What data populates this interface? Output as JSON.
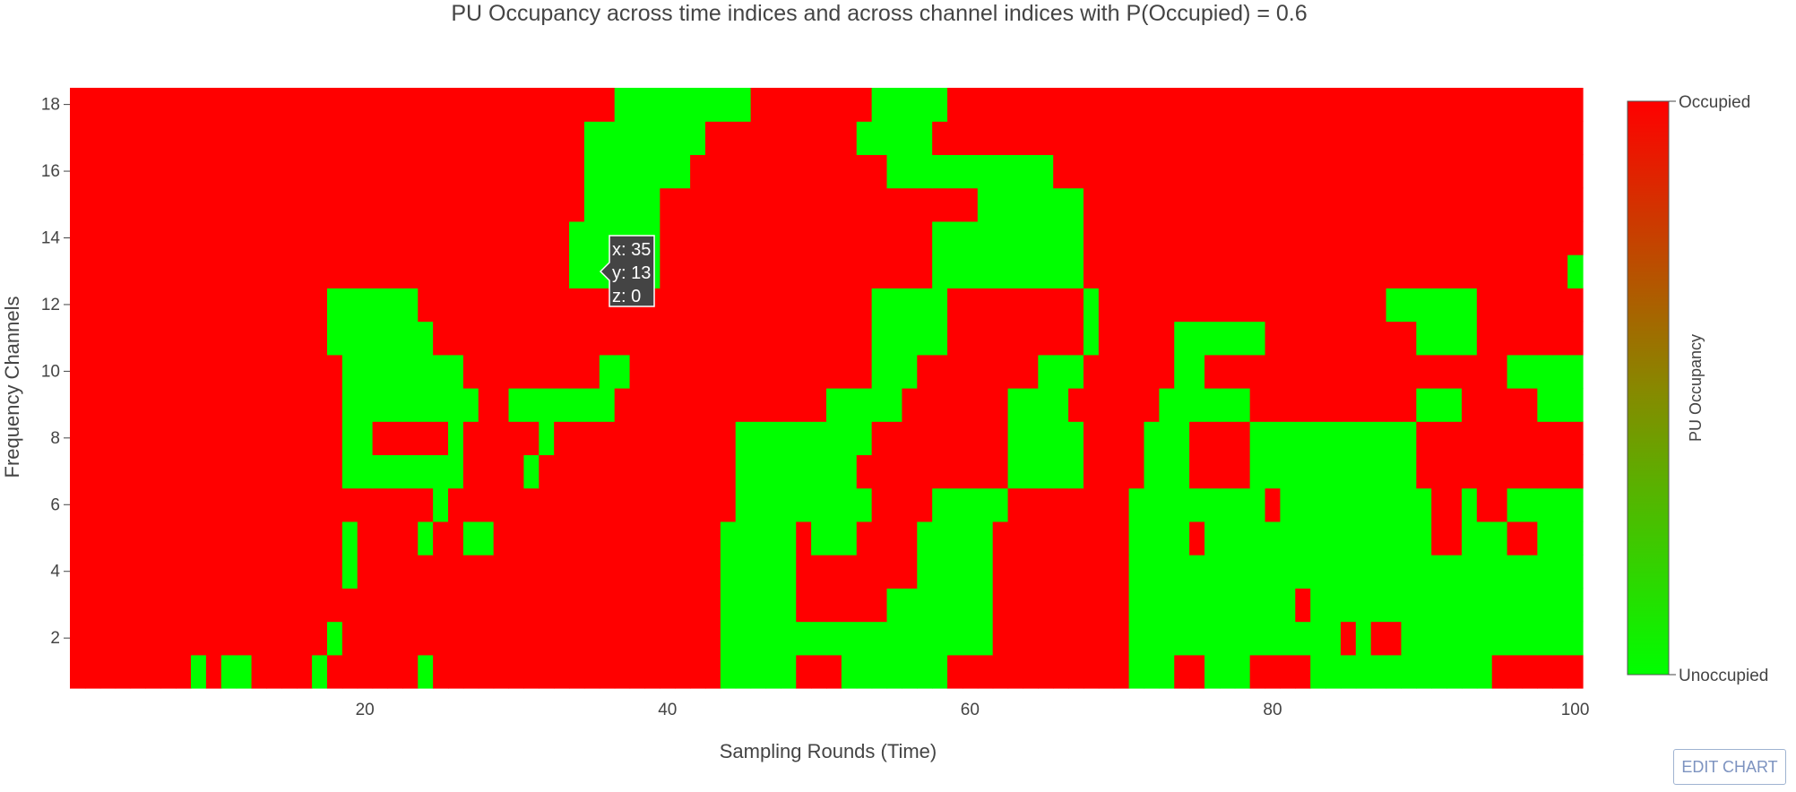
{
  "chart_data": {
    "type": "heatmap",
    "title": "PU Occupancy across time indices and across channel indices with P(Occupied) = 0.6",
    "xlabel": "Sampling Rounds (Time)",
    "ylabel": "Frequency Channels",
    "xlim": [
      0.5,
      100.5
    ],
    "ylim": [
      0.5,
      18.5
    ],
    "x_ticks": [
      20,
      40,
      60,
      80,
      100
    ],
    "y_ticks": [
      2,
      4,
      6,
      8,
      10,
      12,
      14,
      16,
      18
    ],
    "colorscale": {
      "title": "PU Occupancy",
      "low_label": "Unoccupied",
      "high_label": "Occupied",
      "low_color": "#00ff00",
      "high_color": "#ff0000"
    },
    "z_encoding": "rows ordered from y=1 (first) to y=18 (last); each string has 100 characters for x=1..100; '1' = Occupied, '0' = Unoccupied",
    "z": [
      "1111111101001111011111101111111111111111111000001110000000111111111111000110001111000000000000111111",
      "1111111111111111101111111111111111111111111000000000000000000111111111000000000000001011000000000000",
      "1111111111111111111111111111111111111111111000001111110000000111111111000000000001000000000000000000",
      "1111111111111111110111111111111111111111111000001111111100000111111111000000000000000000000000000000",
      "1111111111111111110111101100111111111111111000001000111100000111111111000010000000000000001100011000",
      "1111111111111111111111110111111111111111111100000000011110000011111111000000000100000000001101100000",
      "1111111111111111110000000011110111111111111100000000111111111100000111100011110000000000011111111111",
      "1111111111111111110011111011111011111111111100000000011111111100000111100011110000000000011111111111",
      "1111111111111111110000000001100000001111111111111100000111111100001111110000001111111111100011111000",
      "1111111111111111110000000011111111100111111111111111100011111111000111111001111111111111111111100000",
      "1111111111111111100000001111111111111111111111111111100000111111111011111000000111111111100001111111",
      "1111111111111111100000011111111111111111111111111111100000111111111011111111111111111110000001111111",
      "1111111111111111111111111111111110000001111111111111111110000000000111111111111111111111111111111110",
      "1111111111111111111111111111111110000001111111111111111110000000000111111111111111111111111111111111",
      "1111111111111111111111111111111111000001111111111111111111110000000111111111111111111111111111111111",
      "1111111111111111111111111111111111000000011111111111110000000000011111111111111111111111111111111111",
      "1111111111111111111111111111111111000000001111111111000001111111111111111111111111111111111111111111",
      "1111111111111111111111111111111111110000000001111111100000111111111111111111111111111111111111111111"
    ],
    "hover": {
      "x": "x: 35",
      "y": "y: 13",
      "z": "z: 0"
    }
  },
  "toolbar": {
    "edit_label": "EDIT CHART"
  }
}
